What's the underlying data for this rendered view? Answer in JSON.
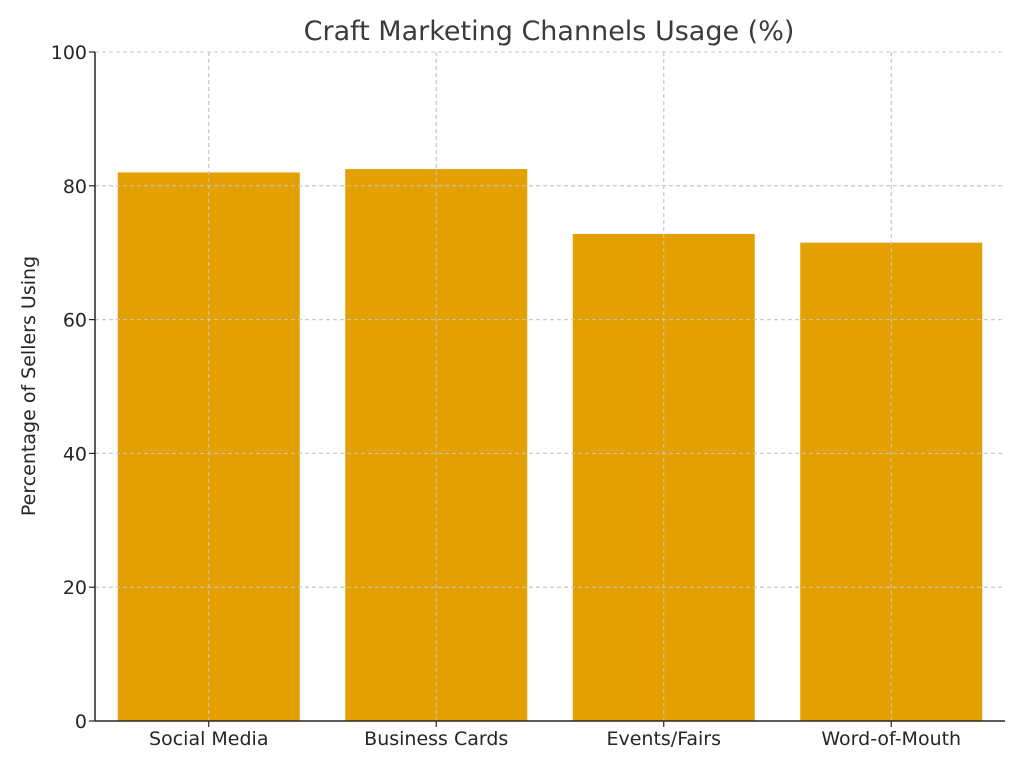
{
  "chart_data": {
    "type": "bar",
    "title": "Craft Marketing Channels Usage (%)",
    "xlabel": "",
    "ylabel": "Percentage of Sellers Using",
    "categories": [
      "Social Media",
      "Business Cards",
      "Events/Fairs",
      "Word-of-Mouth"
    ],
    "values": [
      82,
      82.5,
      72.8,
      71.5
    ],
    "ylim": [
      0,
      100
    ],
    "yticks": [
      "0",
      "20",
      "40",
      "60",
      "80",
      "100"
    ],
    "grid": true,
    "bar_color": "#E49F00"
  }
}
